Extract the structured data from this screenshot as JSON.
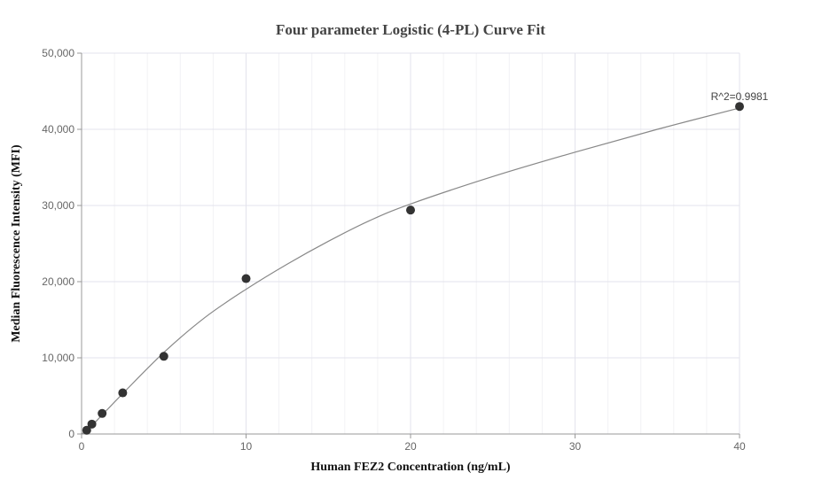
{
  "chart_data": {
    "type": "scatter",
    "title": "Four parameter Logistic (4-PL) Curve Fit",
    "xlabel": "Human FEZ2 Concentration (ng/mL)",
    "ylabel": "Median Fluorescence Intensity (MFI)",
    "xlim": [
      0,
      40
    ],
    "ylim": [
      0,
      50000
    ],
    "x_ticks": [
      0,
      10,
      20,
      30,
      40
    ],
    "x_tick_labels": [
      "0",
      "10",
      "20",
      "30",
      "40"
    ],
    "y_ticks": [
      0,
      10000,
      20000,
      30000,
      40000,
      50000
    ],
    "y_tick_labels": [
      "0",
      "10,000",
      "20,000",
      "30,000",
      "40,000",
      "50,000"
    ],
    "x_minor_step": 2,
    "grid": true,
    "points": [
      {
        "x": 0.3125,
        "y": 500
      },
      {
        "x": 0.625,
        "y": 1300
      },
      {
        "x": 1.25,
        "y": 2700
      },
      {
        "x": 2.5,
        "y": 5400
      },
      {
        "x": 5,
        "y": 10200
      },
      {
        "x": 10,
        "y": 20400
      },
      {
        "x": 20,
        "y": 29400
      },
      {
        "x": 40,
        "y": 43000
      }
    ],
    "fit_curve": [
      {
        "x": 0,
        "y": 0
      },
      {
        "x": 0.3125,
        "y": 500
      },
      {
        "x": 0.625,
        "y": 1100
      },
      {
        "x": 1.25,
        "y": 2500
      },
      {
        "x": 2.5,
        "y": 5300
      },
      {
        "x": 5,
        "y": 10700
      },
      {
        "x": 7.5,
        "y": 15300
      },
      {
        "x": 10,
        "y": 19000
      },
      {
        "x": 12.5,
        "y": 22300
      },
      {
        "x": 15,
        "y": 25300
      },
      {
        "x": 17.5,
        "y": 28000
      },
      {
        "x": 20,
        "y": 30200
      },
      {
        "x": 25,
        "y": 33800
      },
      {
        "x": 30,
        "y": 37000
      },
      {
        "x": 35,
        "y": 40000
      },
      {
        "x": 40,
        "y": 42800
      }
    ],
    "annotation": {
      "text": "R^2=0.9981",
      "x": 40,
      "y": 43000
    },
    "colors": {
      "point": "#333333",
      "curve": "#888888",
      "grid": "#e3e3ec",
      "minor_grid": "#f2f2f5",
      "axis": "#999999"
    }
  }
}
